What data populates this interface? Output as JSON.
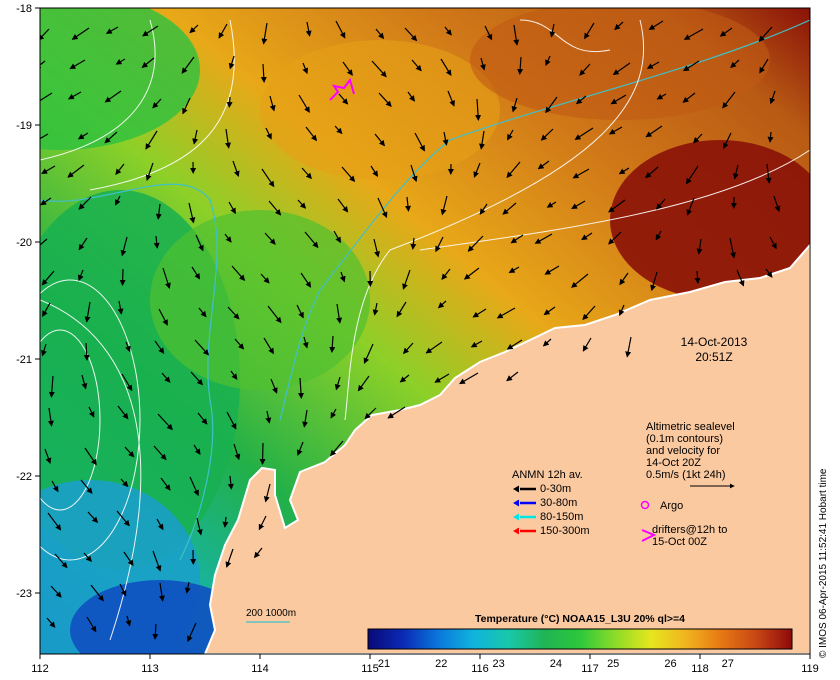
{
  "map": {
    "lon_ticks": [
      "112",
      "113",
      "114",
      "115",
      "116",
      "117",
      "118",
      "119"
    ],
    "lat_ticks": [
      "-18",
      "-19",
      "-20",
      "-21",
      "-22",
      "-23"
    ],
    "date_text": "14-Oct-2013",
    "time_text": "20:51Z",
    "altimetry_lines": [
      "Altimetric sealevel",
      "(0.1m contours)",
      "and velocity for",
      "14-Oct 20Z",
      "0.5m/s (1kt 24h)"
    ],
    "anmn_title": "ANMN 12h av.",
    "anmn_depths": [
      {
        "label": "0-30m",
        "color": "#000000"
      },
      {
        "label": "30-80m",
        "color": "#0000ff"
      },
      {
        "label": "80-150m",
        "color": "#00e5e5"
      },
      {
        "label": "150-300m",
        "color": "#ff0000"
      }
    ],
    "argo_label": "Argo",
    "drifters_lines": [
      "drifters@12h to",
      "15-Oct 00Z"
    ],
    "isobath_label": "200  1000m",
    "colorbar_title": "Temperature (°C) NOAA15_L3U 20% ql>=4",
    "colorbar_ticks": [
      "21",
      "22",
      "23",
      "24",
      "25",
      "26",
      "27"
    ],
    "colorbar_colors": [
      "#0a0a78",
      "#0a2ab4",
      "#0a78dc",
      "#10b4dc",
      "#18c8a8",
      "#20b454",
      "#2cc83c",
      "#8cdc28",
      "#e6e61e",
      "#f0b41e",
      "#e67814",
      "#c84614",
      "#8c0a0a"
    ],
    "credit": "© IMOS 06-Apr-2015 11:52:41 Hobart time",
    "land_color": "#fbc9a0",
    "argo_color": "#ff00ff"
  }
}
